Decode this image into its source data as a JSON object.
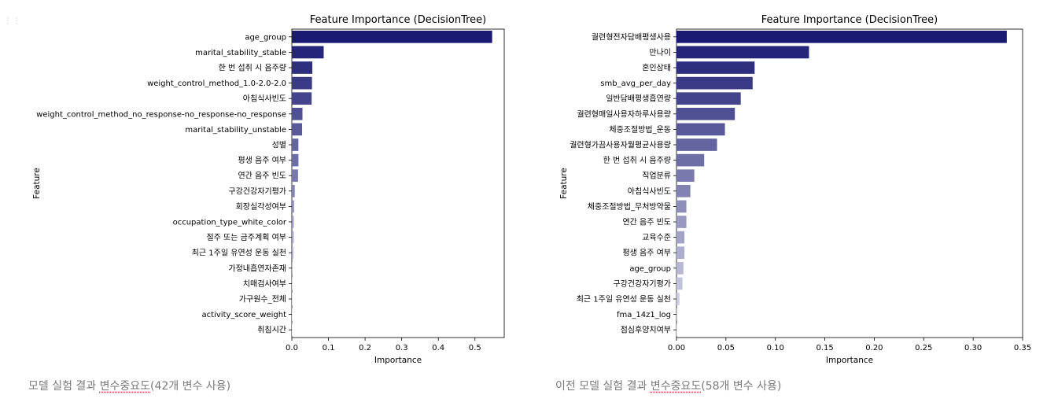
{
  "handle_icon": "drag-handle-icon",
  "captions": {
    "left": {
      "before": "모델 실험 결과 ",
      "underlined": "변수중요도",
      "after": "(42개 변수 사용)"
    },
    "right": {
      "before": "이전 모델 실험 결과 ",
      "underlined": "변수중요도",
      "after": "(58개 변수 사용)"
    }
  },
  "chart_data": [
    {
      "type": "bar",
      "orientation": "horizontal",
      "title": "Feature Importance (DecisionTree)",
      "xlabel": "Importance",
      "ylabel": "Feature",
      "xlim": [
        0,
        0.58
      ],
      "xticks": [
        0.0,
        0.1,
        0.2,
        0.3,
        0.4,
        0.5
      ],
      "tick_labels": [
        "0.0",
        "0.1",
        "0.2",
        "0.3",
        "0.4",
        "0.5"
      ],
      "color_start": "#1a1a72",
      "color_end": "#e2e2ee",
      "categories": [
        "age_group",
        "marital_stability_stable",
        "한 번 섭취 시 음주량",
        "weight_control_method_1.0-2.0-2.0",
        "아침식사빈도",
        "weight_control_method_no_response-no_response-no_response",
        "marital_stability_unstable",
        "성별",
        "평생 음주 여부",
        "연간 음주 빈도",
        "구강건강자기평가",
        "회장실각성여부",
        "occupation_type_white_color",
        "절주 또는 금주계획 여부",
        "최근 1주일 유연성 운동 실천",
        "가정내흡연자존재",
        "치매검사여부",
        "가구원수_전체",
        "activity_score_weight",
        "취침시간"
      ],
      "values": [
        0.547,
        0.087,
        0.056,
        0.055,
        0.054,
        0.029,
        0.028,
        0.018,
        0.018,
        0.017,
        0.008,
        0.006,
        0.005,
        0.005,
        0.004,
        0.002,
        0.001,
        0.001,
        0.0005,
        0.0003
      ]
    },
    {
      "type": "bar",
      "orientation": "horizontal",
      "title": "Feature Importance (DecisionTree)",
      "xlabel": "Importance",
      "ylabel": "Feature",
      "xlim": [
        0,
        0.35
      ],
      "xticks": [
        0.0,
        0.05,
        0.1,
        0.15,
        0.2,
        0.25,
        0.3,
        0.35
      ],
      "tick_labels": [
        "0.00",
        "0.05",
        "0.10",
        "0.15",
        "0.20",
        "0.25",
        "0.30",
        "0.35"
      ],
      "color_start": "#1a1a72",
      "color_end": "#e2e2ee",
      "categories": [
        "궐련형전자담배평생사용",
        "만나이",
        "혼인상태",
        "smb_avg_per_day",
        "일반담배평생흡연량",
        "궐련형매일사용자하루사용량",
        "체중조절방법_운동",
        "궐련형가끔사용자월평균사용량",
        "한 번 섭취 시 음주량",
        "직업분류",
        "아침식사빈도",
        "체중조절방법_무처방약물",
        "연간 음주 빈도",
        "교육수준",
        "평생 음주 여부",
        "age_group",
        "구강건강자기평가",
        "최근 1주일 유연성 운동 실천",
        "fma_14z1_log",
        "점심후양치여부"
      ],
      "values": [
        0.334,
        0.134,
        0.079,
        0.077,
        0.065,
        0.059,
        0.049,
        0.041,
        0.028,
        0.018,
        0.014,
        0.01,
        0.01,
        0.008,
        0.008,
        0.007,
        0.006,
        0.003,
        0.001,
        0.0005
      ]
    }
  ]
}
